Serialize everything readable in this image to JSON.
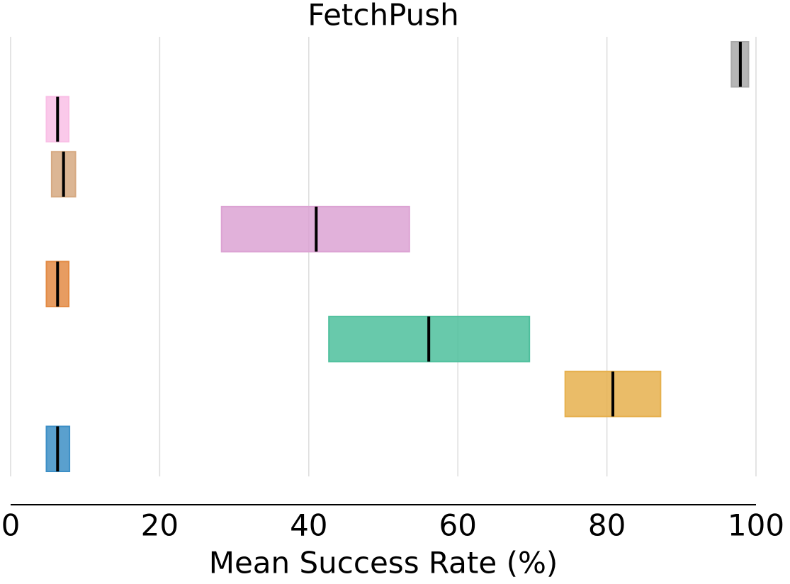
{
  "chart_data": {
    "type": "interval",
    "title": "FetchPush",
    "x_label": "Mean Success Rate (%)",
    "categories": [
      null,
      null,
      null,
      null,
      null,
      null,
      null,
      null
    ],
    "low": [
      96.7,
      4.8,
      5.5,
      28.3,
      4.8,
      42.7,
      74.4,
      4.8
    ],
    "median": [
      97.9,
      6.3,
      7.1,
      41.0,
      6.3,
      56.1,
      80.8,
      6.3
    ],
    "high": [
      99.0,
      7.8,
      8.7,
      53.5,
      7.8,
      69.6,
      87.2,
      7.9
    ],
    "colors": [
      "#a9a9a9",
      "#f9bfe6",
      "#d6a981",
      "#dca3d3",
      "#e38b45",
      "#4dbf9c",
      "#e6b04d",
      "#3d8fc6"
    ],
    "xlim": [
      0,
      100
    ],
    "xticks": [
      0,
      20,
      40,
      60,
      80,
      100
    ],
    "grid": true
  }
}
